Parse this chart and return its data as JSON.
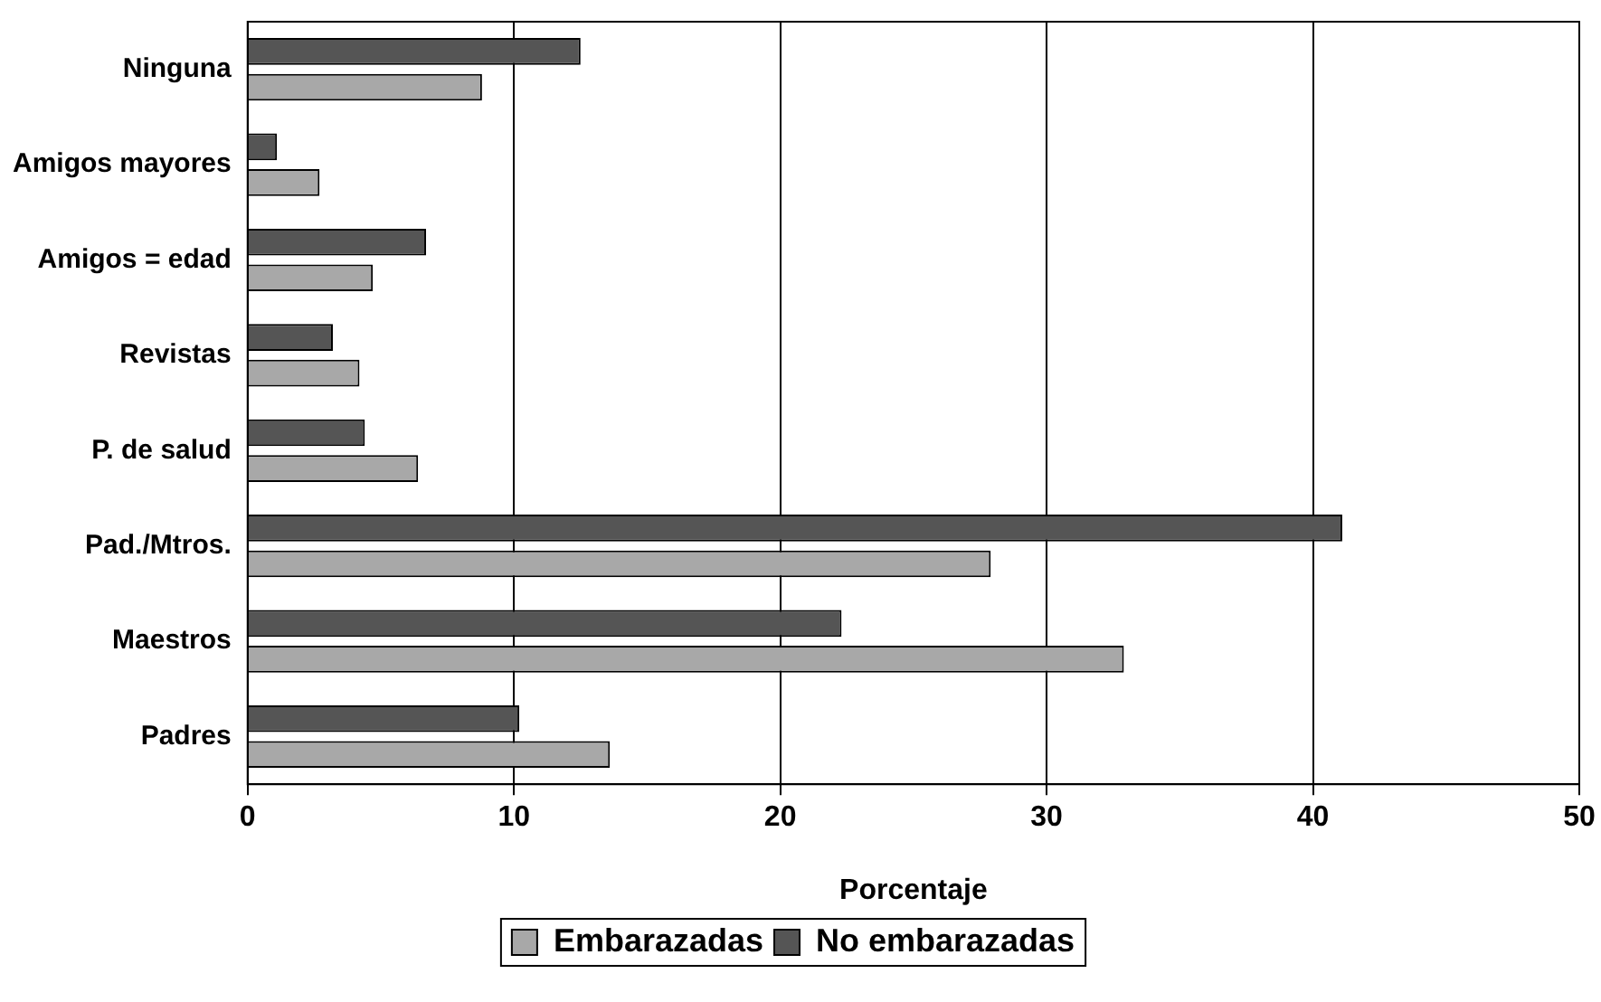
{
  "chart_data": {
    "type": "bar",
    "orientation": "horizontal",
    "xlabel": "Porcentaje",
    "categories": [
      "Ninguna",
      "Amigos mayores",
      "Amigos = edad",
      "Revistas",
      "P. de salud",
      "Pad./Mtros.",
      "Maestros",
      "Padres"
    ],
    "series": [
      {
        "name": "No embarazadas",
        "color": "#555555",
        "values": [
          12.5,
          1.1,
          6.7,
          3.2,
          4.4,
          41.1,
          22.3,
          10.2
        ]
      },
      {
        "name": "Embarazadas",
        "color": "#a8a8a8",
        "values": [
          8.8,
          2.7,
          4.7,
          4.2,
          6.4,
          27.9,
          32.9,
          13.6
        ]
      }
    ],
    "xlim": [
      0,
      50
    ],
    "xticks": [
      0,
      10,
      20,
      30,
      40,
      50
    ],
    "grid": "x",
    "legend": "bottom"
  }
}
